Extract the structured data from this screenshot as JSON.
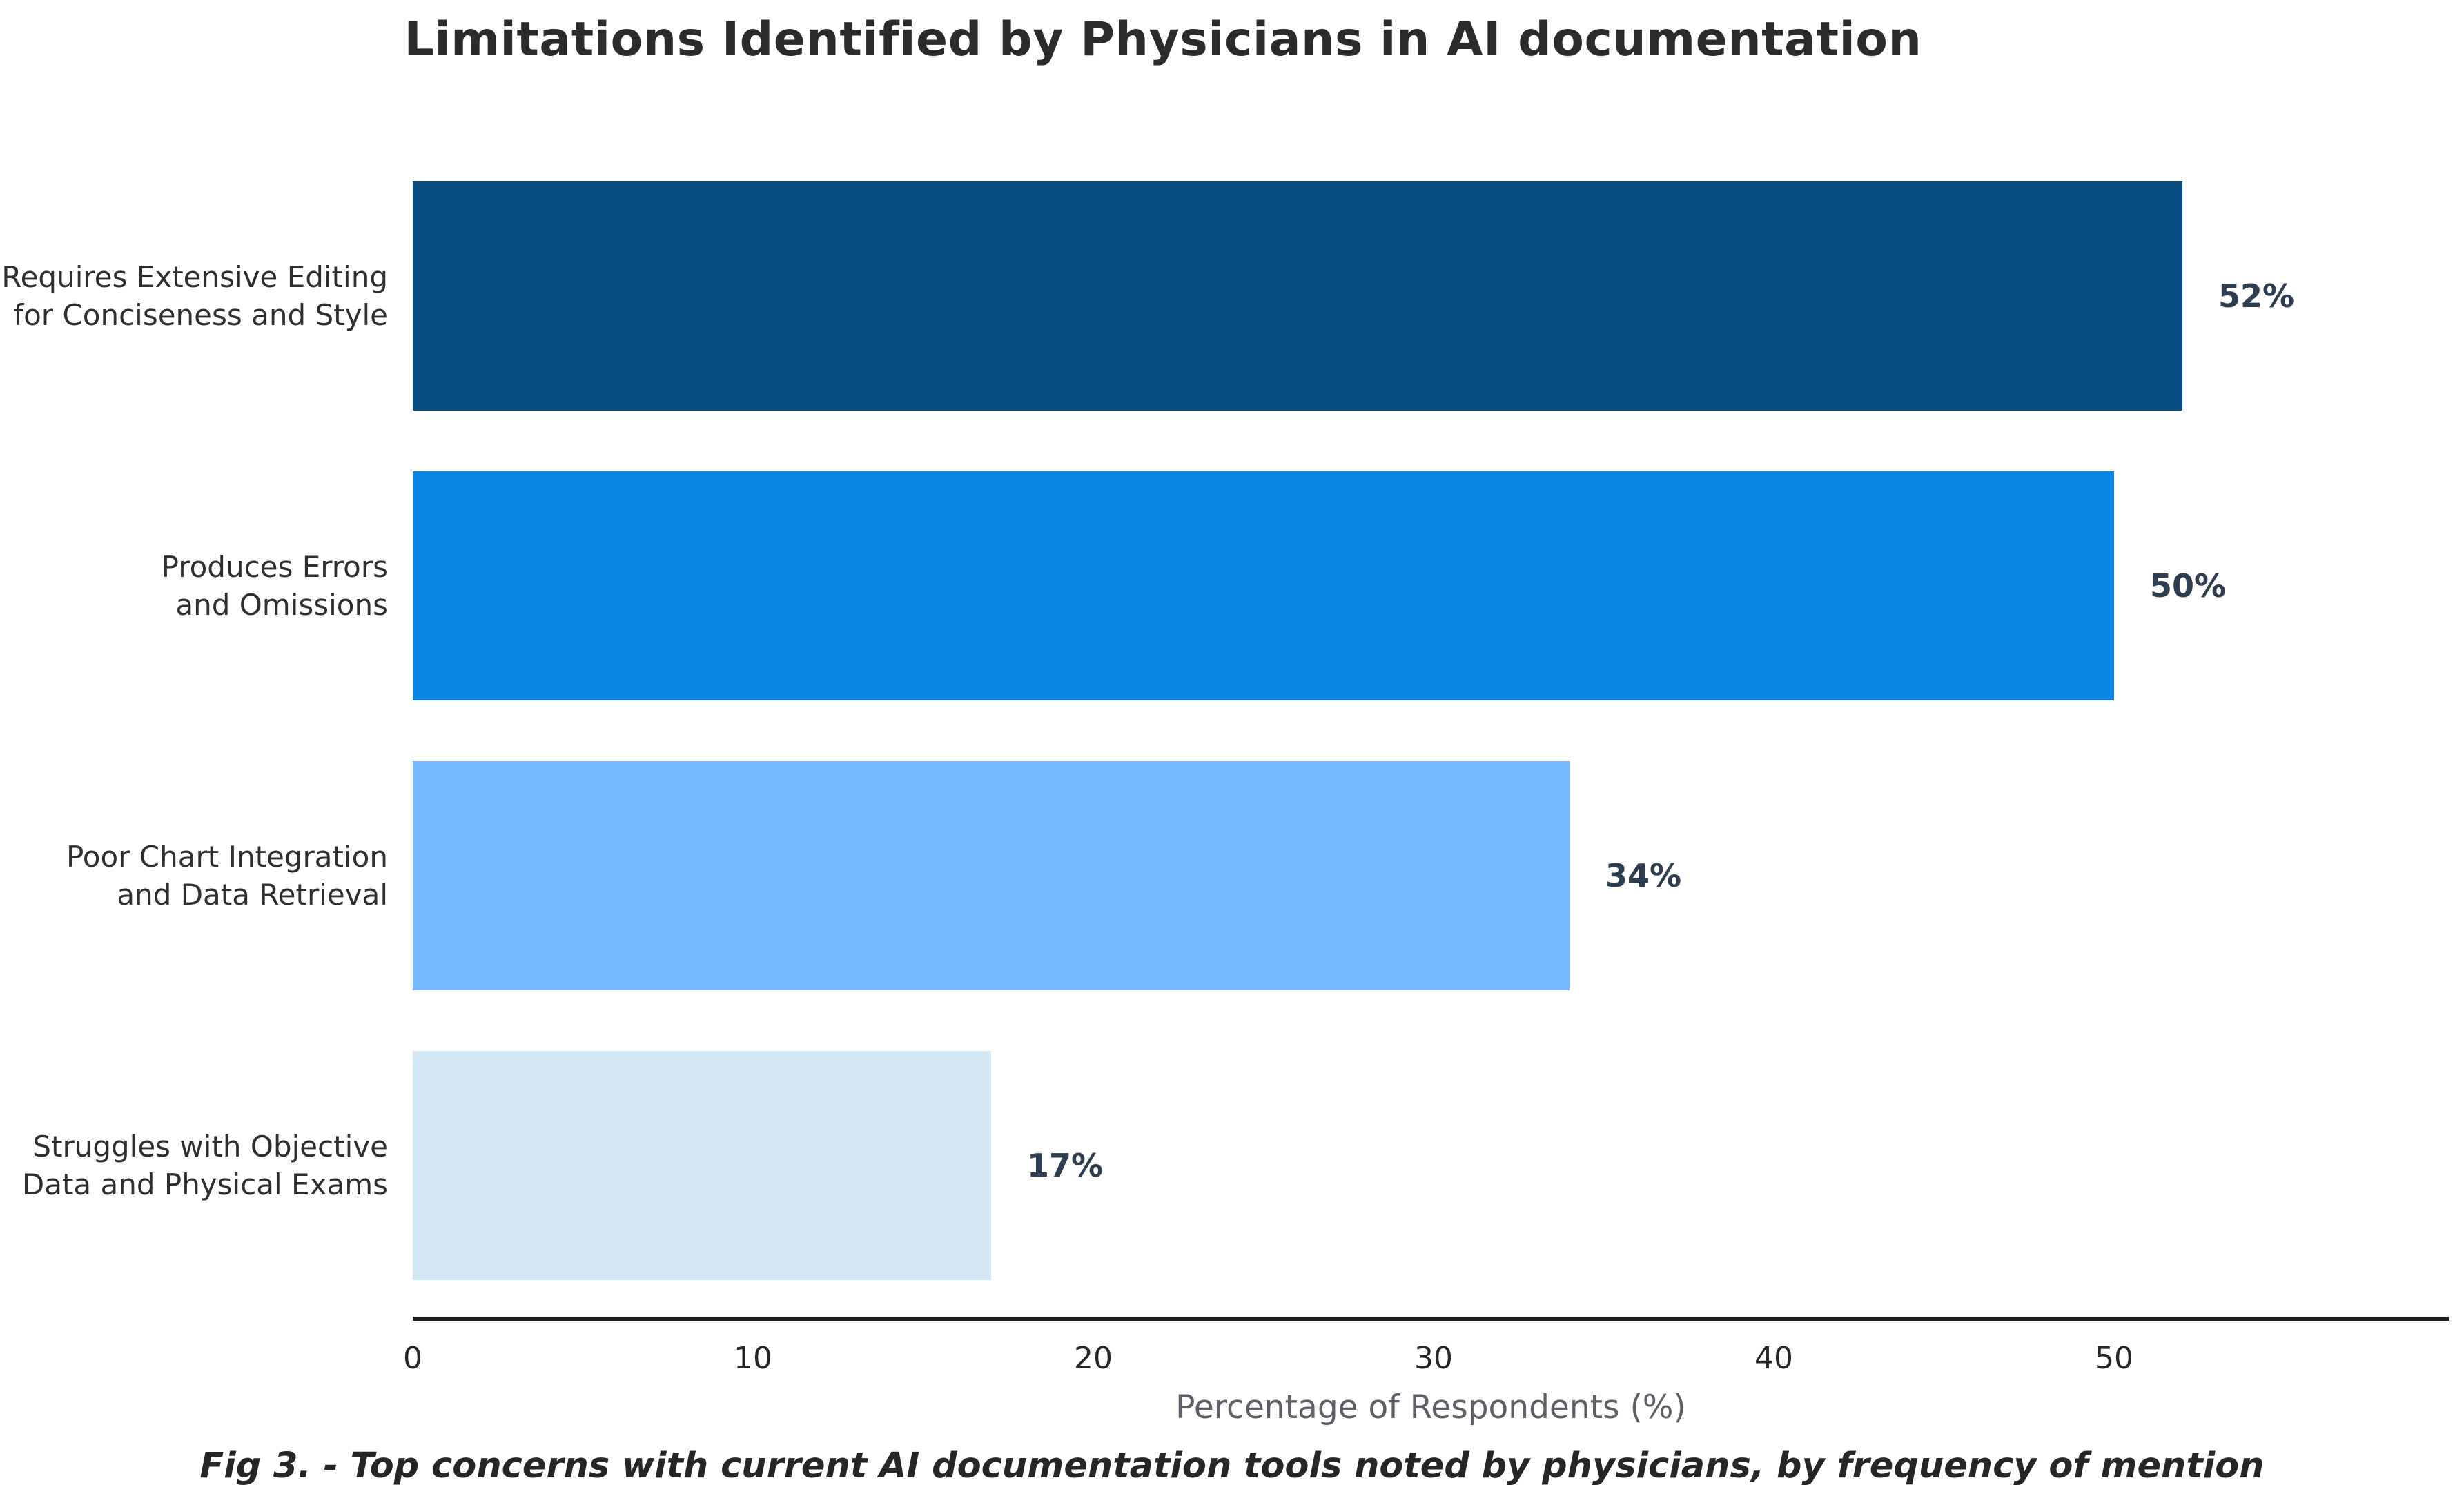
{
  "title": "Limitations Identified by Physicians in AI documentation",
  "caption": "Fig 3. - Top concerns with current AI documentation tools noted by physicians, by frequency of mention",
  "chart_data": {
    "type": "bar",
    "orientation": "horizontal",
    "title": "Limitations Identified by Physicians in AI documentation",
    "categories": [
      "Requires Extensive Editing\nfor Conciseness and Style",
      "Produces Errors\nand Omissions",
      "Poor Chart Integration\nand Data Retrieval",
      "Struggles with Objective\nData and Physical Exams"
    ],
    "values": [
      52,
      50,
      34,
      17
    ],
    "value_labels": [
      "52%",
      "50%",
      "34%",
      "17%"
    ],
    "bar_colors": [
      "#084d81",
      "#0984e3",
      "#74b9ff",
      "#d3e8f4"
    ],
    "xlabel": "Percentage of Respondents (%)",
    "x_ticks": [
      0,
      10,
      20,
      30,
      40,
      50
    ],
    "xlim": [
      0,
      60
    ],
    "grid": false,
    "legend_position": "none",
    "value_label_color": "#2d3e50",
    "axis_line_color": "#1f1f1f"
  }
}
